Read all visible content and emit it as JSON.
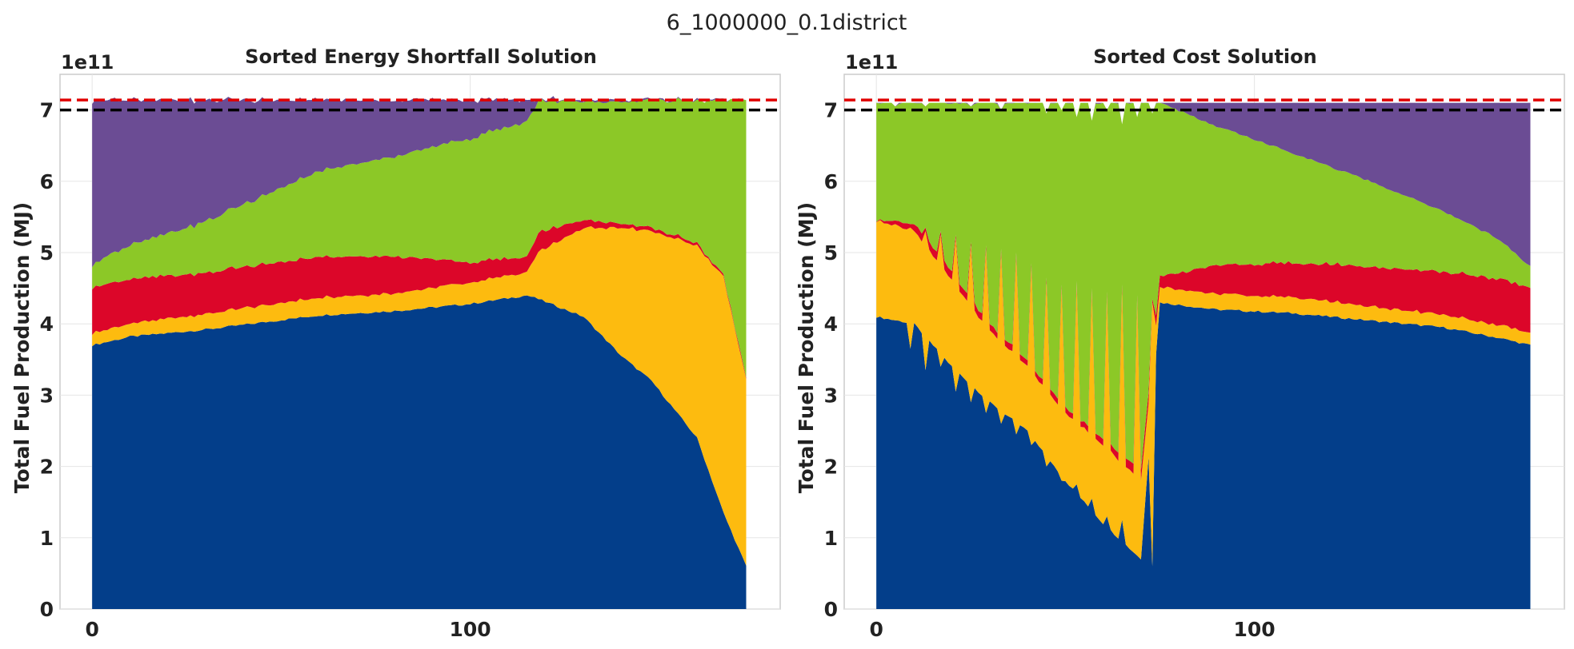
{
  "suptitle": "6_1000000_0.1district",
  "colors": {
    "series": [
      "#033e8a",
      "#fdbb0f",
      "#dc0629",
      "#8cc827",
      "#6b4c94"
    ],
    "red_line": "#e00000",
    "black_line": "#000000",
    "frame": "#cccccc",
    "text": "#1a1a1a"
  },
  "chart_data": [
    {
      "type": "area",
      "stacked": true,
      "title": "Sorted Energy Shortfall Solution",
      "ylabel": "Total Fuel Production (MJ)",
      "xlabel": "",
      "y_offset_label": "1e11",
      "xlim": [
        -8.5,
        182
      ],
      "ylim": [
        0,
        7.5
      ],
      "xticks": [
        0,
        100
      ],
      "yticks": [
        0,
        1,
        2,
        3,
        4,
        5,
        6,
        7
      ],
      "grid": true,
      "hlines": [
        {
          "y": 7.14,
          "style": "dashed",
          "color": "red"
        },
        {
          "y": 7.0,
          "style": "dashed",
          "color": "black"
        }
      ],
      "x_count": 174,
      "stack_order": [
        "blue",
        "yellow",
        "red",
        "green",
        "purple"
      ],
      "keyframes": {
        "x": [
          0,
          10,
          30,
          60,
          80,
          100,
          115,
          118,
          130,
          140,
          148,
          160,
          167,
          173
        ],
        "blue": [
          3.7,
          3.82,
          3.92,
          4.12,
          4.18,
          4.28,
          4.4,
          4.35,
          4.1,
          3.55,
          3.2,
          2.4,
          1.35,
          0.6
        ],
        "yellow": [
          0.17,
          0.18,
          0.22,
          0.25,
          0.25,
          0.3,
          0.32,
          0.65,
          1.25,
          1.8,
          2.1,
          2.7,
          3.3,
          2.62
        ],
        "red": [
          0.65,
          0.62,
          0.58,
          0.57,
          0.52,
          0.28,
          0.22,
          0.27,
          0.12,
          0.06,
          0.05,
          0.03,
          0.03,
          0.02
        ],
        "green": [
          0.32,
          0.48,
          0.72,
          1.2,
          1.4,
          1.74,
          1.9,
          1.85,
          1.65,
          1.7,
          1.78,
          2.0,
          2.46,
          3.9
        ],
        "purple": [
          2.3,
          2.04,
          1.7,
          1.0,
          0.79,
          0.54,
          0.3,
          0.02,
          0.02,
          0.03,
          0.01,
          0.01,
          0.0,
          0.0
        ]
      }
    },
    {
      "type": "area",
      "stacked": true,
      "title": "Sorted Cost Solution",
      "ylabel": "Total Fuel Production (MJ)",
      "xlabel": "",
      "y_offset_label": "1e11",
      "xlim": [
        -8.5,
        182
      ],
      "ylim": [
        0,
        7.5
      ],
      "xticks": [
        0,
        100
      ],
      "yticks": [
        0,
        1,
        2,
        3,
        4,
        5,
        6,
        7
      ],
      "grid": true,
      "hlines": [
        {
          "y": 7.14,
          "style": "dashed",
          "color": "red"
        },
        {
          "y": 7.0,
          "style": "dashed",
          "color": "black"
        }
      ],
      "x_count": 174,
      "stack_order": [
        "blue",
        "yellow",
        "red",
        "green",
        "purple"
      ],
      "note_total": "total stack height = 7.1 at every x",
      "keyframes": {
        "x": [
          0,
          10,
          20,
          30,
          40,
          50,
          60,
          70,
          75,
          90,
          110,
          130,
          150,
          165,
          173
        ],
        "blue": [
          4.1,
          4.0,
          3.4,
          2.9,
          2.5,
          1.8,
          1.2,
          0.7,
          4.3,
          4.2,
          4.15,
          4.05,
          3.95,
          3.8,
          3.7
        ],
        "yellow": [
          1.35,
          1.3,
          1.2,
          1.0,
          0.9,
          0.95,
          1.1,
          1.1,
          0.22,
          0.22,
          0.22,
          0.2,
          0.18,
          0.18,
          0.17
        ],
        "red": [
          0.02,
          0.1,
          0.12,
          0.1,
          0.08,
          0.08,
          0.08,
          0.15,
          0.15,
          0.4,
          0.48,
          0.56,
          0.6,
          0.65,
          0.63
        ],
        "green": [
          1.63,
          1.7,
          2.38,
          3.1,
          3.62,
          4.27,
          4.72,
          5.15,
          2.43,
          1.95,
          1.55,
          1.2,
          0.85,
          0.55,
          0.3
        ],
        "purple": [
          0.0,
          0.0,
          0.0,
          0.0,
          0.0,
          0.0,
          0.0,
          0.0,
          0.0,
          0.33,
          0.7,
          1.09,
          1.52,
          1.92,
          2.3
        ]
      },
      "spikes": {
        "x": [
          5,
          9,
          13,
          17,
          21,
          25,
          29,
          33,
          37,
          41,
          45,
          49,
          53,
          57,
          61,
          65,
          69,
          73
        ],
        "blue_depth": [
          4.05,
          3.65,
          3.35,
          3.4,
          3.05,
          2.9,
          2.75,
          2.6,
          2.45,
          2.3,
          2.0,
          1.8,
          1.75,
          1.55,
          1.3,
          1.25,
          0.75,
          0.6
        ],
        "yellow_top": [
          5.4,
          5.35,
          5.3,
          5.25,
          5.2,
          5.1,
          5.05,
          5.0,
          4.95,
          4.8,
          4.6,
          4.5,
          4.55,
          4.45,
          4.4,
          4.5,
          4.35,
          4.3
        ],
        "purple_dip": [
          7.05,
          7.1,
          7.05,
          7.1,
          7.1,
          7.05,
          7.1,
          7.0,
          7.1,
          7.1,
          6.95,
          7.0,
          6.9,
          6.85,
          7.0,
          6.8,
          6.9,
          6.95
        ]
      }
    }
  ]
}
